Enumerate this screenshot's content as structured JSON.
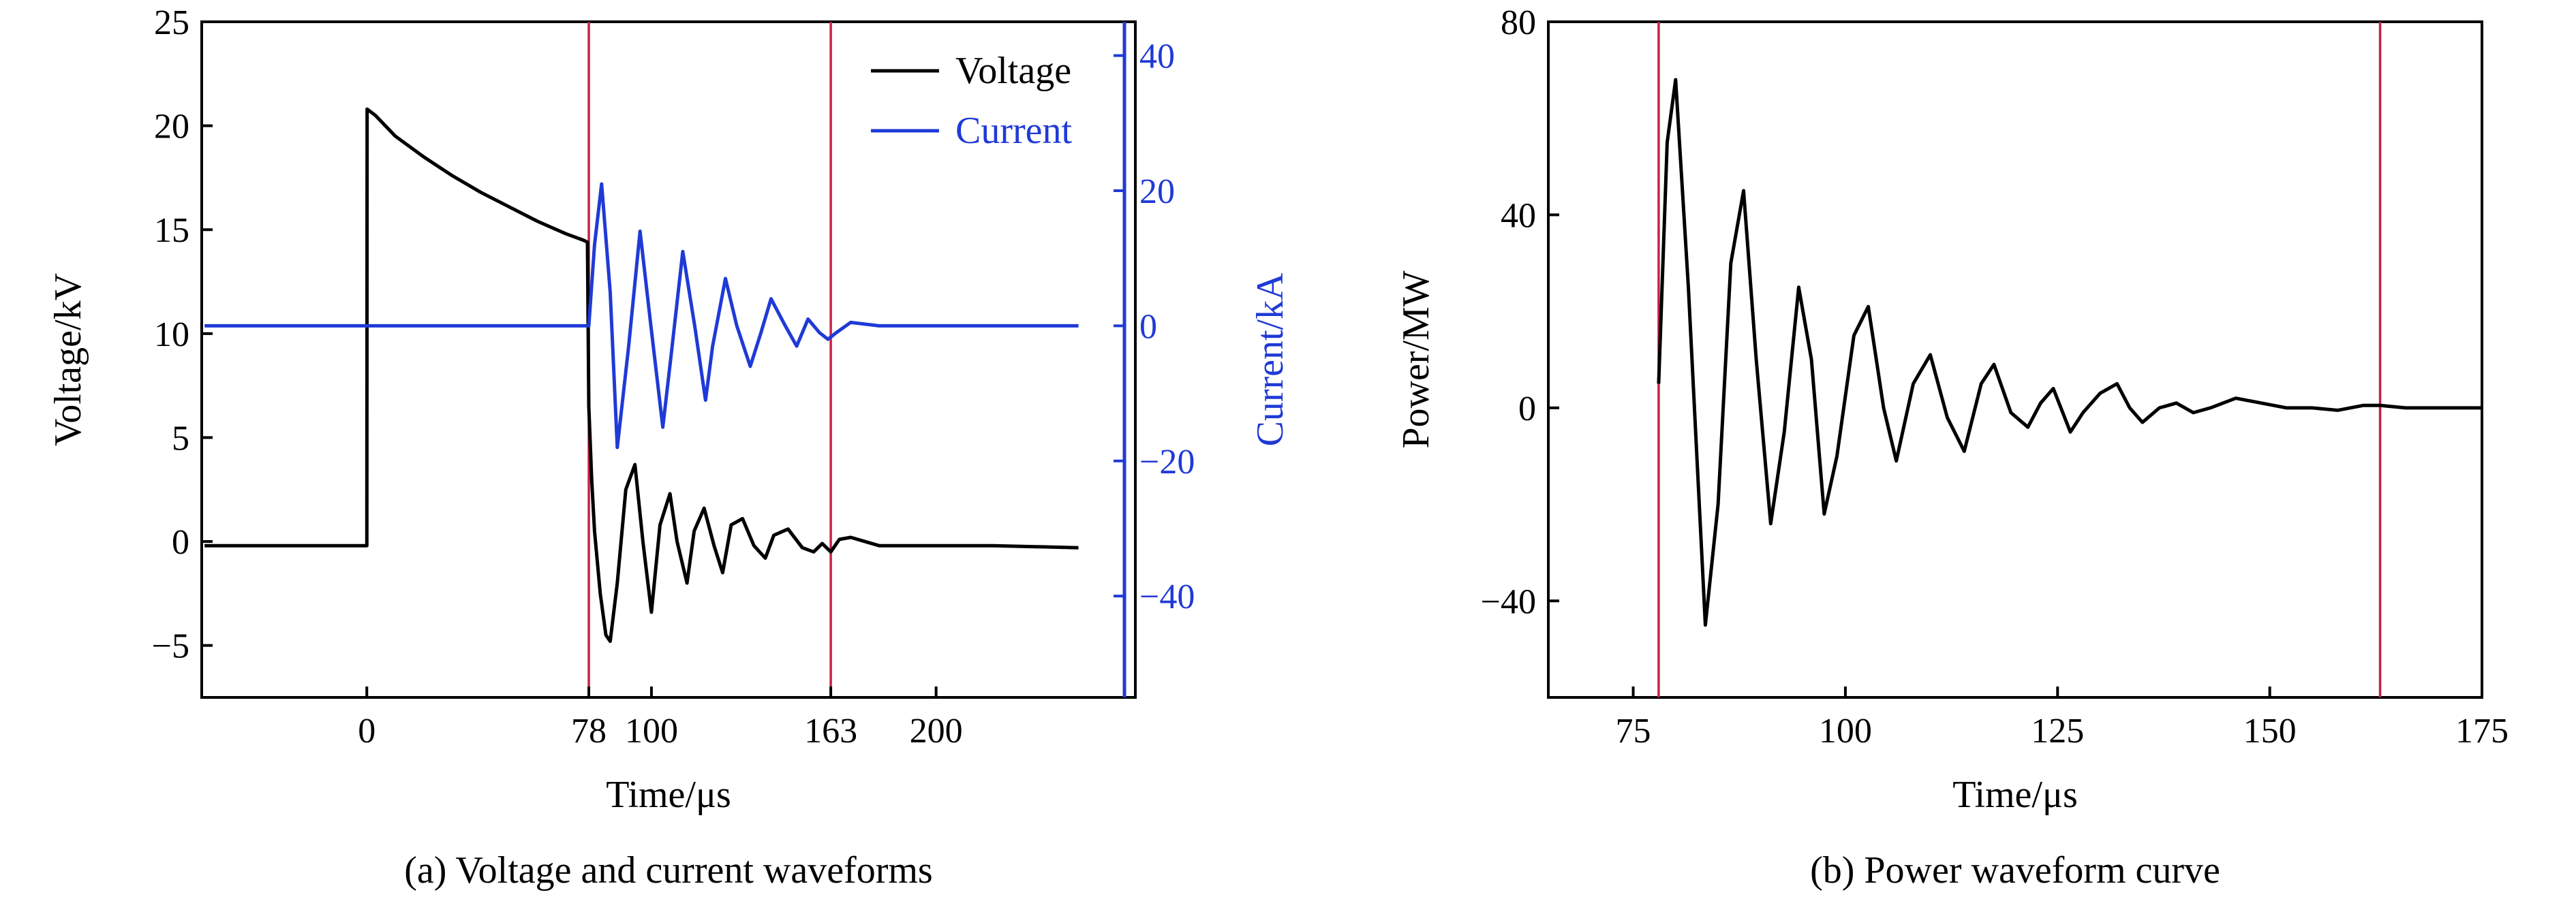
{
  "chart_data": [
    {
      "type": "line",
      "caption": "(a) Voltage and current waveforms",
      "xlabel": "Time/μs",
      "ylabel": "Voltage/kV",
      "y2label": "Current/kA",
      "xlim": [
        -58,
        270
      ],
      "ylim": [
        -7.5,
        25
      ],
      "y2lim": [
        -55,
        45
      ],
      "xticks": [
        0,
        78,
        100,
        163,
        200
      ],
      "xtick_labels": [
        "0",
        "78",
        "100",
        "163",
        "200"
      ],
      "yticks": [
        -5,
        0,
        5,
        10,
        15,
        20,
        25
      ],
      "ytick_labels": [
        "−5",
        "0",
        "5",
        "10",
        "15",
        "20",
        "25"
      ],
      "y2ticks": [
        -40,
        -20,
        0,
        20,
        40
      ],
      "y2tick_labels": [
        "−40",
        "−20",
        "0",
        "20",
        "40"
      ],
      "vlines": [
        78,
        163
      ],
      "legend_position": "top-right",
      "grid": false,
      "series": [
        {
          "name": "Voltage",
          "axis": "left",
          "color": "#000000",
          "x": [
            -57,
            0,
            0.1,
            3,
            10,
            20,
            30,
            40,
            50,
            60,
            70,
            76,
            77.5,
            78,
            79,
            80,
            82,
            84,
            85.5,
            88,
            91,
            94.2,
            97,
            100,
            103,
            106.5,
            109,
            112.5,
            115,
            118.5,
            122,
            125,
            128,
            132,
            136,
            140,
            143,
            148,
            153,
            157,
            160,
            163,
            166,
            170,
            180,
            200,
            220,
            250
          ],
          "values": [
            -0.2,
            -0.2,
            20.8,
            20.5,
            19.5,
            18.5,
            17.6,
            16.8,
            16.1,
            15.4,
            14.8,
            14.5,
            14.4,
            6.5,
            3.0,
            0.5,
            -2.5,
            -4.5,
            -4.8,
            -2.0,
            2.5,
            3.7,
            0.0,
            -3.4,
            0.8,
            2.3,
            0.0,
            -2.0,
            0.5,
            1.6,
            -0.2,
            -1.5,
            0.8,
            1.1,
            -0.2,
            -0.8,
            0.3,
            0.6,
            -0.3,
            -0.5,
            -0.1,
            -0.5,
            0.1,
            0.2,
            -0.2,
            -0.2,
            -0.2,
            -0.3
          ]
        },
        {
          "name": "Current",
          "axis": "right",
          "color": "#1f3ad6",
          "x": [
            -57,
            0,
            50,
            77,
            78,
            80,
            82.5,
            85.5,
            88,
            92,
            96,
            99.8,
            104,
            107,
            111,
            115.2,
            119,
            121.5,
            126,
            130,
            134.7,
            138.5,
            142,
            147,
            151,
            155,
            159,
            162,
            165,
            170,
            180,
            200,
            220,
            250
          ],
          "values": [
            0,
            0,
            0,
            0,
            0,
            12,
            21,
            5,
            -18,
            -3,
            14,
            0,
            -15,
            -4,
            11,
            0,
            -11,
            -3,
            7,
            0,
            -6,
            -1,
            4,
            0,
            -3,
            1,
            -1,
            -2,
            -1,
            0.5,
            0,
            0,
            0,
            0
          ]
        }
      ]
    },
    {
      "type": "line",
      "caption": "(b) Power waveform curve",
      "xlabel": "Time/μs",
      "ylabel": "Power/MW",
      "xlim": [
        65,
        175
      ],
      "ylim": [
        -60,
        80
      ],
      "xticks": [
        75,
        100,
        125,
        150,
        175
      ],
      "xtick_labels": [
        "75",
        "100",
        "125",
        "150",
        "175"
      ],
      "yticks": [
        -40,
        0,
        40,
        80
      ],
      "ytick_labels": [
        "−40",
        "0",
        "40",
        "80"
      ],
      "vlines": [
        78,
        163
      ],
      "grid": false,
      "series": [
        {
          "color": "#000000",
          "x": [
            78,
            79,
            80,
            81.5,
            83.5,
            85,
            86.5,
            88,
            89.5,
            91.2,
            92.8,
            94.5,
            96,
            97.5,
            99,
            101,
            102.7,
            104.5,
            106,
            108,
            110,
            112,
            114,
            116,
            117.5,
            119.5,
            121.5,
            123,
            124.5,
            126.5,
            128,
            130,
            132,
            133.5,
            135,
            137,
            139,
            141,
            143,
            146,
            149,
            152,
            155,
            158,
            161,
            163,
            166,
            170,
            175
          ],
          "values": [
            5,
            55,
            68,
            25,
            -45,
            -20,
            30,
            45,
            10,
            -24,
            -5,
            25,
            10,
            -22,
            -10,
            15,
            21,
            0,
            -11,
            5,
            11,
            -2,
            -9,
            5,
            9,
            -1,
            -4,
            1,
            4,
            -5,
            -1,
            3,
            5,
            0,
            -3,
            0,
            1,
            -1,
            0,
            2,
            1,
            0,
            0,
            -0.5,
            0.5,
            0.5,
            0,
            0,
            0
          ]
        }
      ]
    }
  ]
}
